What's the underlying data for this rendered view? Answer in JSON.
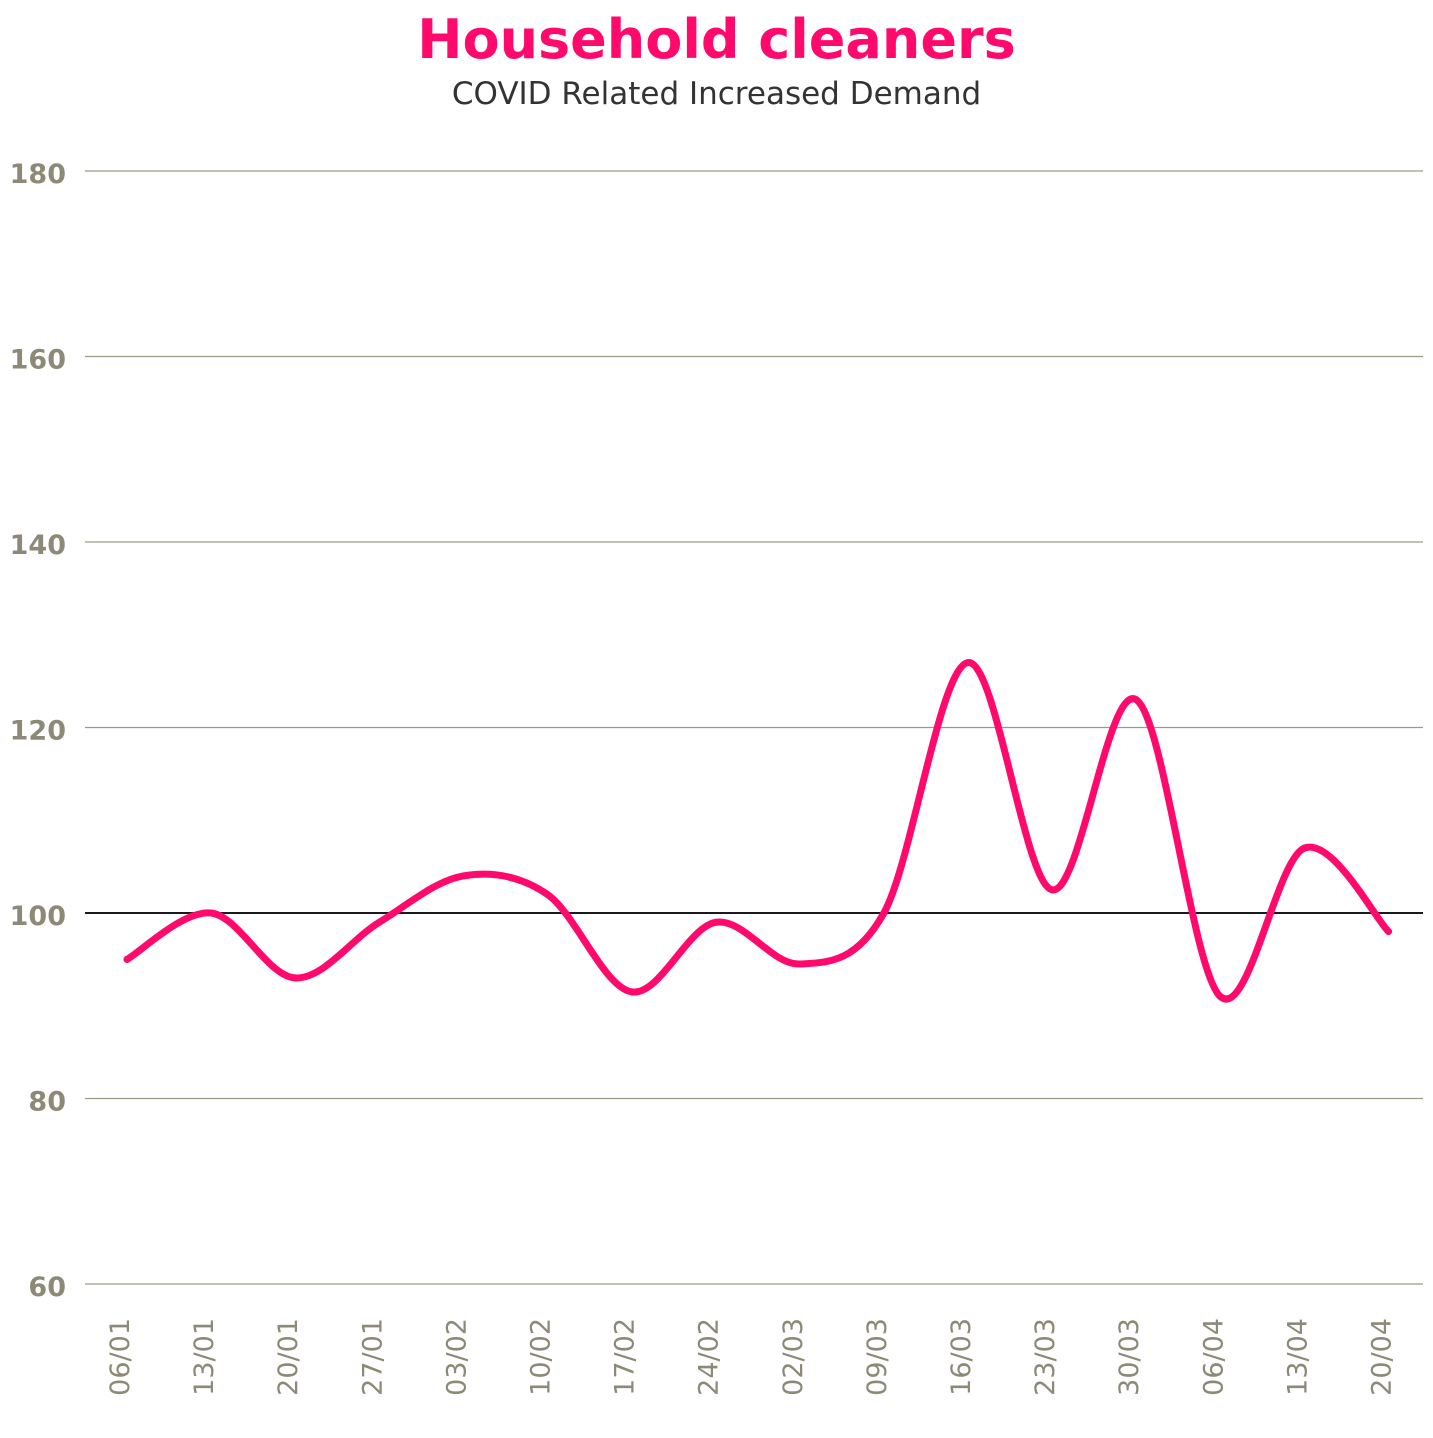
{
  "chart_data": {
    "type": "line",
    "title": "Household cleaners",
    "subtitle": "COVID Related Increased Demand",
    "xlabel": "",
    "ylabel": "",
    "ylim": [
      60,
      180
    ],
    "yticks": [
      60,
      80,
      100,
      120,
      140,
      160,
      180
    ],
    "reference_line": 100,
    "categories": [
      "06/01",
      "13/01",
      "20/01",
      "27/01",
      "03/02",
      "10/02",
      "17/02",
      "24/02",
      "02/03",
      "09/03",
      "16/03",
      "23/03",
      "30/03",
      "06/04",
      "13/04",
      "20/04"
    ],
    "series": [
      {
        "values": [
          95,
          100,
          93,
          99,
          104,
          102,
          91.5,
          99,
          94.5,
          100,
          127,
          102.5,
          123,
          91,
          107,
          98
        ]
      }
    ],
    "grid": true,
    "colors": {
      "line": "#ff0a6c",
      "grid": "#9a9a86",
      "reference": "#1a1a1a",
      "ticks": "#8c8a76"
    }
  }
}
